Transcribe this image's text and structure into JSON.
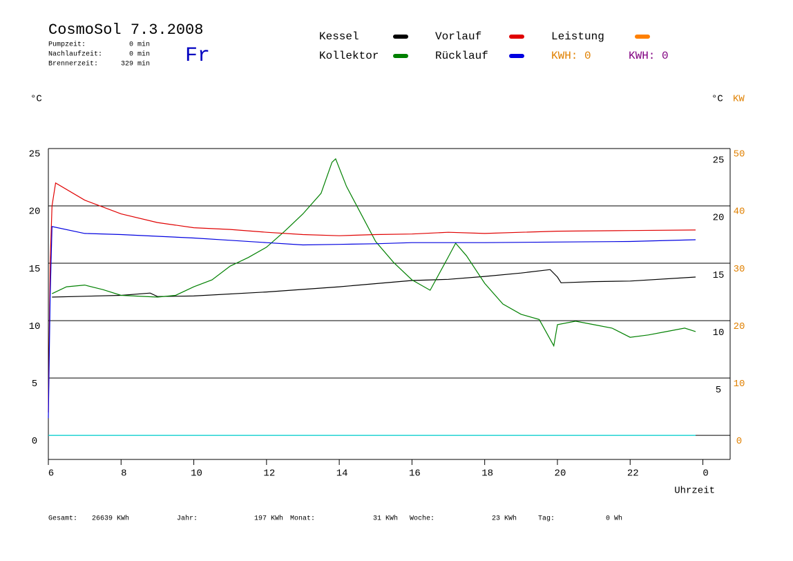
{
  "chart_data": {
    "type": "line",
    "title": "CosmoSol 7.3.2008",
    "day": "Fr",
    "info": [
      {
        "label": "Pumpzeit:",
        "value": "0 min"
      },
      {
        "label": "Nachlaufzeit:",
        "value": "0 min"
      },
      {
        "label": "Brennerzeit:",
        "value": "329 min"
      }
    ],
    "kwh_labels": [
      {
        "text": "KWH: 0",
        "color": "#e08000"
      },
      {
        "text": "KWH: 0",
        "color": "#800080"
      }
    ],
    "y_label": "°C",
    "y2_label": "°C",
    "y3_label": "KW",
    "x_label": "Uhrzeit",
    "xlim": [
      6,
      24.75
    ],
    "xticks": [
      6,
      8,
      10,
      12,
      14,
      16,
      18,
      20,
      22,
      {
        "value": 24,
        "label": "0"
      }
    ],
    "ylim": [
      -2.1,
      25
    ],
    "yticks": [
      0,
      5,
      10,
      15,
      20,
      25
    ],
    "y2lim": [
      -2.1,
      25
    ],
    "y2ticks": [
      5,
      10,
      15,
      20,
      25
    ],
    "y3lim": [
      -4.2,
      50
    ],
    "y3ticks": [
      0,
      10,
      20,
      30,
      40,
      50
    ],
    "grid": true,
    "series": [
      {
        "name": "Kessel",
        "color": "#000000",
        "x": [
          6.1,
          8,
          8.8,
          9,
          10,
          12,
          14,
          16,
          17,
          18,
          19,
          19.8,
          20,
          20.1,
          21,
          22,
          23.8
        ],
        "values": [
          12.05,
          12.2,
          12.4,
          12.1,
          12.15,
          12.5,
          12.95,
          13.5,
          13.6,
          13.85,
          14.15,
          14.45,
          13.8,
          13.3,
          13.4,
          13.45,
          13.8
        ]
      },
      {
        "name": "Kollektor",
        "color": "#008000",
        "x": [
          6.1,
          6.5,
          7,
          7.5,
          8,
          9,
          9.5,
          10,
          10.5,
          11,
          11.5,
          12,
          12.5,
          13,
          13.5,
          13.8,
          13.9,
          14.2,
          14.5,
          15,
          15.5,
          16,
          16.5,
          17,
          17.2,
          17.5,
          18,
          18.5,
          19,
          19.5,
          19.9,
          20,
          20.5,
          21,
          21.5,
          22,
          22.5,
          23,
          23.5,
          23.8
        ],
        "values": [
          12.35,
          12.95,
          13.1,
          12.7,
          12.2,
          12.05,
          12.2,
          12.95,
          13.55,
          14.75,
          15.5,
          16.4,
          17.8,
          19.3,
          21.1,
          23.8,
          24.1,
          21.7,
          19.9,
          16.9,
          15.05,
          13.55,
          12.65,
          15.55,
          16.75,
          15.65,
          13.25,
          11.45,
          10.55,
          10.1,
          7.8,
          9.65,
          9.95,
          9.65,
          9.35,
          8.55,
          8.75,
          9.05,
          9.35,
          9.05
        ]
      },
      {
        "name": "Vorlauf",
        "color": "#e00000",
        "x": [
          6,
          6.05,
          6.1,
          6.2,
          7,
          8,
          9,
          10,
          11,
          12,
          13,
          14,
          15,
          16,
          17,
          18,
          19,
          20,
          22,
          23.8
        ],
        "values": [
          2,
          15,
          20,
          22,
          20.5,
          19.3,
          18.55,
          18.1,
          17.95,
          17.7,
          17.5,
          17.4,
          17.5,
          17.55,
          17.7,
          17.6,
          17.7,
          17.8,
          17.85,
          17.9
        ]
      },
      {
        "name": "Rücklauf",
        "color": "#0000e0",
        "x": [
          6,
          6.05,
          6.1,
          7,
          8,
          9,
          10,
          11,
          12,
          13,
          14,
          15,
          16,
          17,
          18,
          20,
          22,
          23.8
        ],
        "values": [
          1.5,
          12,
          18.2,
          17.6,
          17.5,
          17.35,
          17.2,
          17,
          16.8,
          16.6,
          16.65,
          16.7,
          16.8,
          16.8,
          16.8,
          16.85,
          16.9,
          17.05
        ]
      },
      {
        "name": "Leistung",
        "color": "#ff8000",
        "x": [],
        "values": []
      },
      {
        "color": "#00d8d8",
        "x": [
          6,
          23.8
        ],
        "values": [
          0,
          0
        ]
      }
    ],
    "totals": [
      {
        "label": "Gesamt:",
        "value": "26639 KWh"
      },
      {
        "label": "Jahr:",
        "value": "197 KWh"
      },
      {
        "label": "Monat:",
        "value": "31 KWh"
      },
      {
        "label": "Woche:",
        "value": "23 KWh"
      },
      {
        "label": "Tag:",
        "value": "0 Wh"
      }
    ]
  }
}
